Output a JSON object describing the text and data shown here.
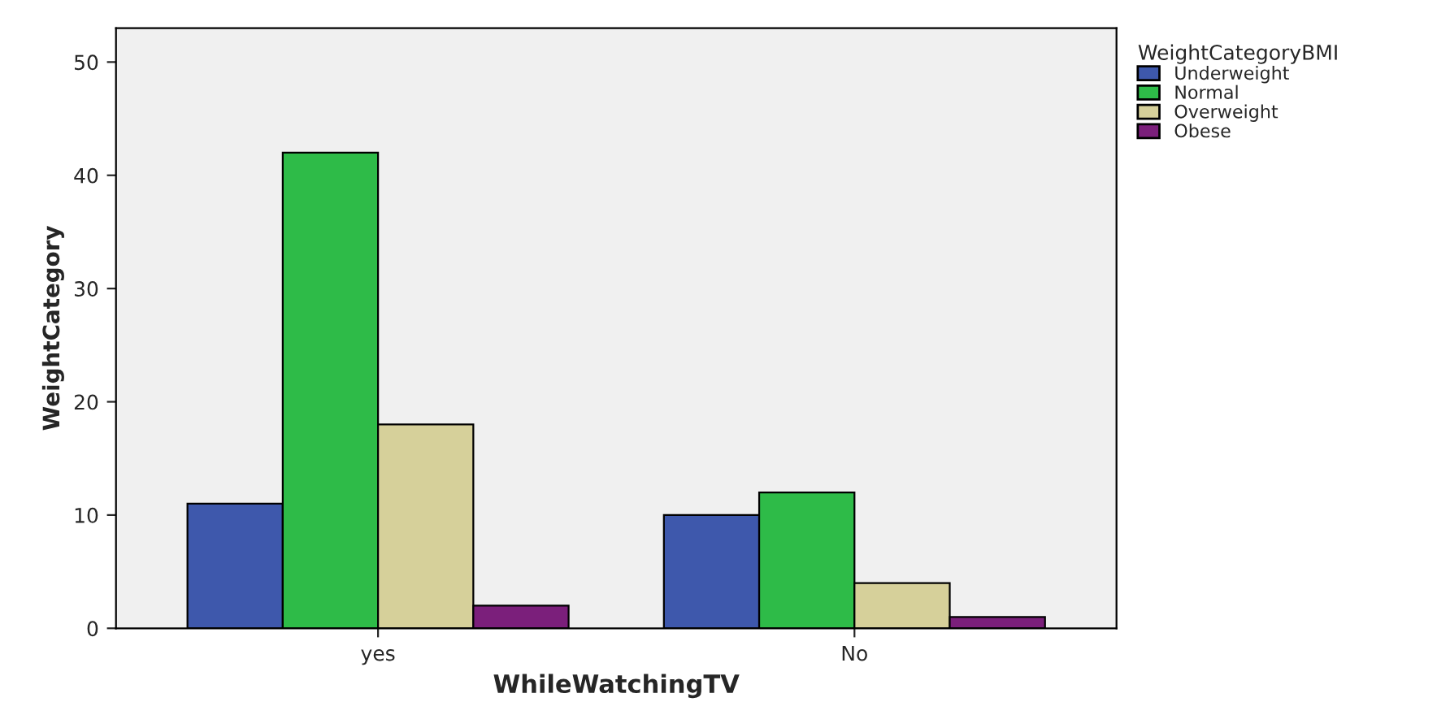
{
  "chart_data": {
    "type": "bar",
    "xlabel": "WhileWatchingTV",
    "ylabel": "WeightCategory",
    "legend_title": "WeightCategoryBMI",
    "categories": [
      "yes",
      "No"
    ],
    "series": [
      {
        "name": "Underweight",
        "color": "#3e58ac",
        "values": [
          11,
          10
        ]
      },
      {
        "name": "Normal",
        "color": "#2ebb48",
        "values": [
          42,
          12
        ]
      },
      {
        "name": "Overweight",
        "color": "#d6d09a",
        "values": [
          18,
          4
        ]
      },
      {
        "name": "Obese",
        "color": "#7b1f7b",
        "values": [
          2,
          1
        ]
      }
    ],
    "ylim": [
      0,
      53
    ],
    "yticks": [
      0,
      10,
      20,
      30,
      40,
      50
    ],
    "grid": false,
    "legend": "top right"
  }
}
